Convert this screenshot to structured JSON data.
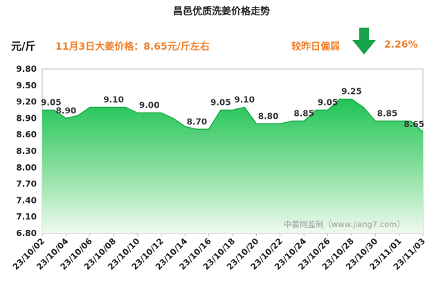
{
  "header": {
    "title": "昌邑优质洗姜价格走势",
    "unit": "元/斤",
    "subtitle": "11月3日大姜价格：8.65元/斤左右",
    "change_label": "较昨日偏弱",
    "change_value": "2.26%",
    "change_direction": "down",
    "arrow_icon": "down-arrow-icon"
  },
  "watermark": "中姜网监制（www.jiang7.com）",
  "colors": {
    "title": "#222222",
    "highlight": "#f07f2a",
    "area_top": "#1fc456",
    "area_bottom": "#effaef",
    "line": "#1aaa47",
    "arrow": "#17a34a"
  },
  "chart_data": {
    "type": "area",
    "title": "昌邑优质洗姜价格走势",
    "ylabel": "元/斤",
    "xlabel": "",
    "ylim": [
      6.8,
      9.8
    ],
    "yticks": [
      "6.80",
      "7.10",
      "7.40",
      "7.70",
      "8.00",
      "8.30",
      "8.60",
      "8.90",
      "9.20",
      "9.50",
      "9.80"
    ],
    "x": [
      "23/10/02",
      "23/10/03",
      "23/10/04",
      "23/10/05",
      "23/10/06",
      "23/10/07",
      "23/10/08",
      "23/10/09",
      "23/10/10",
      "23/10/11",
      "23/10/12",
      "23/10/13",
      "23/10/14",
      "23/10/15",
      "23/10/16",
      "23/10/17",
      "23/10/18",
      "23/10/19",
      "23/10/20",
      "23/10/21",
      "23/10/22",
      "23/10/23",
      "23/10/24",
      "23/10/25",
      "23/10/26",
      "23/10/27",
      "23/10/28",
      "23/10/29",
      "23/10/30",
      "23/10/31",
      "23/11/01",
      "23/11/02",
      "23/11/03"
    ],
    "values": [
      9.05,
      9.05,
      8.9,
      8.95,
      9.1,
      9.1,
      9.1,
      9.1,
      9.0,
      9.0,
      9.0,
      8.9,
      8.75,
      8.7,
      8.7,
      9.05,
      9.05,
      9.1,
      8.8,
      8.8,
      8.8,
      8.85,
      8.85,
      9.05,
      9.05,
      9.25,
      9.25,
      9.1,
      8.85,
      8.85,
      8.85,
      8.85,
      8.65
    ],
    "xtick_labels": [
      "23/10/02",
      "23/10/04",
      "23/10/06",
      "23/10/08",
      "23/10/10",
      "23/10/12",
      "23/10/14",
      "23/10/16",
      "23/10/18",
      "23/10/20",
      "23/10/22",
      "23/10/24",
      "23/10/26",
      "23/10/28",
      "23/10/30",
      "23/11/01",
      "23/11/03"
    ],
    "data_labels": [
      {
        "x": "23/10/02",
        "text": "9.05"
      },
      {
        "x": "23/10/04",
        "text": "8.90"
      },
      {
        "x": "23/10/08",
        "text": "9.10"
      },
      {
        "x": "23/10/11",
        "text": "9.00"
      },
      {
        "x": "23/10/15",
        "text": "8.70"
      },
      {
        "x": "23/10/17",
        "text": "9.05"
      },
      {
        "x": "23/10/19",
        "text": "9.10"
      },
      {
        "x": "23/10/21",
        "text": "8.80"
      },
      {
        "x": "23/10/24",
        "text": "8.85"
      },
      {
        "x": "23/10/26",
        "text": "9.05"
      },
      {
        "x": "23/10/28",
        "text": "9.25"
      },
      {
        "x": "23/10/31",
        "text": "8.85"
      },
      {
        "x": "23/11/03",
        "text": "8.65"
      }
    ],
    "grid": false,
    "legend": "none"
  }
}
